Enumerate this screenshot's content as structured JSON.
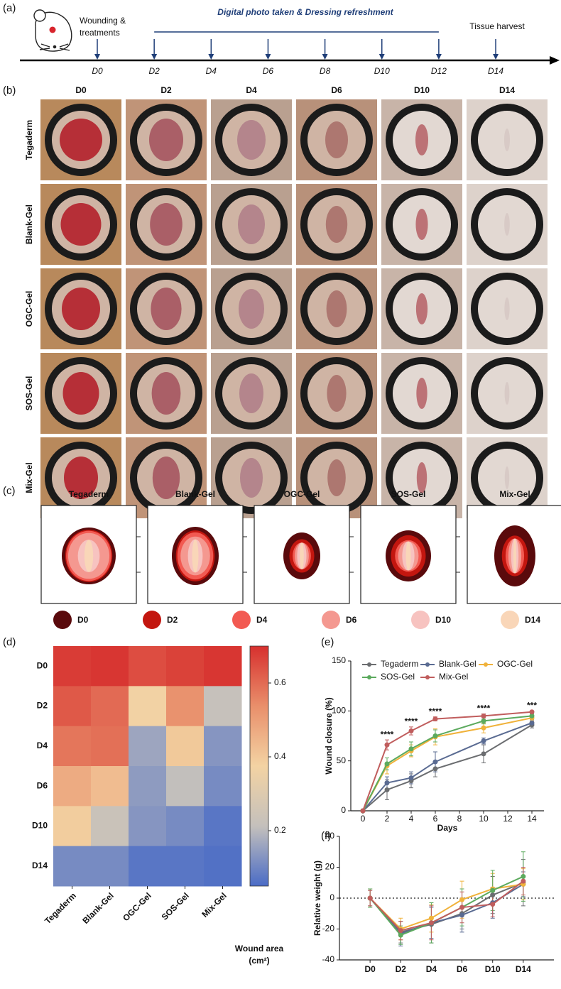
{
  "panel_labels": [
    "(a)",
    "(b)",
    "(c)",
    "(d)",
    "(e)",
    "(f)"
  ],
  "timeline": {
    "start_label": [
      "Wounding &",
      "treatments"
    ],
    "banner": "Digital photo taken & Dressing refreshment",
    "end_label": "Tissue harvest",
    "days": [
      "D0",
      "D2",
      "D4",
      "D6",
      "D8",
      "D10",
      "D12",
      "D14"
    ]
  },
  "photos": {
    "columns": [
      "D0",
      "D2",
      "D4",
      "D6",
      "D10",
      "D14"
    ],
    "rows": [
      "Tegaderm",
      "Blank-Gel",
      "OGC-Gel",
      "SOS-Gel",
      "Mix-Gel"
    ]
  },
  "outlines": {
    "groups": [
      "Tegaderm",
      "Blank-Gel",
      "OGC-Gel",
      "SOS-Gel",
      "Mix-Gel"
    ],
    "legend": [
      {
        "name": "D0",
        "color": "#5a0a0c"
      },
      {
        "name": "D2",
        "color": "#c3160f"
      },
      {
        "name": "D4",
        "color": "#f25a52"
      },
      {
        "name": "D6",
        "color": "#f49890"
      },
      {
        "name": "D10",
        "color": "#f7c3c0"
      },
      {
        "name": "D14",
        "color": "#f9d6b8"
      }
    ]
  },
  "chart_data": [
    {
      "type": "heatmap",
      "rows": [
        "D0",
        "D2",
        "D4",
        "D6",
        "D10",
        "D14"
      ],
      "columns": [
        "Tegaderm",
        "Blank-Gel",
        "OGC-Gel",
        "SOS-Gel",
        "Mix-Gel"
      ],
      "values": [
        [
          0.68,
          0.69,
          0.65,
          0.67,
          0.69
        ],
        [
          0.63,
          0.6,
          0.37,
          0.53,
          0.22
        ],
        [
          0.58,
          0.59,
          0.16,
          0.4,
          0.13
        ],
        [
          0.47,
          0.43,
          0.14,
          0.21,
          0.11
        ],
        [
          0.39,
          0.23,
          0.13,
          0.11,
          0.07
        ],
        [
          0.11,
          0.11,
          0.07,
          0.07,
          0.06
        ]
      ],
      "clim": [
        0.05,
        0.7
      ],
      "colorbar_ticks": [
        0.2,
        0.4,
        0.6
      ],
      "colormap": [
        "#4a6cc6",
        "#c4c0bc",
        "#f3d3a3",
        "#e98f6b",
        "#d7302e"
      ],
      "colorbar_label": [
        "Wound area",
        "(cm²)"
      ]
    },
    {
      "type": "line",
      "x": [
        0,
        2,
        4,
        6,
        10,
        14
      ],
      "xlim": [
        -1,
        15
      ],
      "xticks": [
        0,
        2,
        4,
        6,
        8,
        10,
        12,
        14
      ],
      "ylim": [
        0,
        150
      ],
      "yticks": [
        0,
        50,
        100,
        150
      ],
      "xlabel": "Days",
      "ylabel": "Wound closure (%)",
      "legend": "top",
      "series": [
        {
          "name": "Tegaderm",
          "color": "#6b6d70",
          "values": [
            0,
            21,
            30,
            42,
            57,
            86
          ],
          "errors": [
            0,
            10,
            7,
            8,
            9,
            3
          ]
        },
        {
          "name": "Blank-Gel",
          "color": "#5a6b92",
          "values": [
            0,
            28,
            33,
            49,
            70,
            88
          ],
          "errors": [
            0,
            6,
            6,
            10,
            3,
            3
          ]
        },
        {
          "name": "OGC-Gel",
          "color": "#f0b23a",
          "values": [
            0,
            45,
            60,
            74,
            83,
            93
          ],
          "errors": [
            0,
            8,
            6,
            8,
            5,
            3
          ]
        },
        {
          "name": "SOS-Gel",
          "color": "#5caa5e",
          "values": [
            0,
            47,
            62,
            75,
            90,
            95
          ],
          "errors": [
            0,
            6,
            7,
            6,
            3,
            2
          ]
        },
        {
          "name": "Mix-Gel",
          "color": "#c05d5d",
          "values": [
            0,
            66,
            80,
            92,
            95,
            99
          ],
          "errors": [
            0,
            5,
            4,
            2,
            2,
            1
          ]
        }
      ],
      "significance": {
        "x": [
          2,
          4,
          6,
          10,
          14
        ],
        "labels": [
          "****",
          "****",
          "****",
          "****",
          "***"
        ]
      }
    },
    {
      "type": "line",
      "categories": [
        "D0",
        "D2",
        "D4",
        "D6",
        "D10",
        "D14"
      ],
      "ylim": [
        -40,
        40
      ],
      "yticks": [
        -40,
        -20,
        0,
        20,
        40
      ],
      "ylabel": "Relative weight (g)",
      "reference_line": 0,
      "series": [
        {
          "color": "#6b6d70",
          "values": [
            0,
            -22,
            -17,
            -10,
            2,
            10
          ],
          "errors": [
            5,
            7,
            12,
            10,
            12,
            15
          ]
        },
        {
          "color": "#5a6b92",
          "values": [
            0,
            -23,
            -16,
            -11,
            -3,
            9
          ],
          "errors": [
            6,
            8,
            10,
            11,
            10,
            8
          ]
        },
        {
          "color": "#f0b23a",
          "values": [
            0,
            -20,
            -13,
            -1,
            6,
            9
          ],
          "errors": [
            6,
            7,
            9,
            12,
            10,
            10
          ]
        },
        {
          "color": "#5caa5e",
          "values": [
            0,
            -24,
            -16,
            -6,
            5,
            14
          ],
          "errors": [
            6,
            6,
            13,
            12,
            13,
            16
          ]
        },
        {
          "color": "#c05d5d",
          "values": [
            0,
            -21,
            -16,
            -6,
            -4,
            11
          ],
          "errors": [
            5,
            6,
            11,
            10,
            8,
            9
          ]
        }
      ]
    }
  ]
}
